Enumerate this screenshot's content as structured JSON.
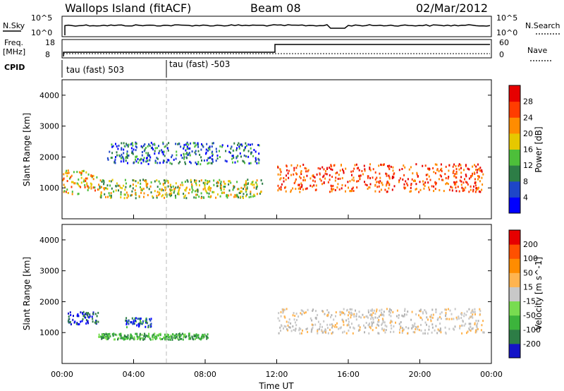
{
  "header": {
    "station": "Wallops Island (fitACF)",
    "beam": "Beam 08",
    "date": "02/Mar/2012"
  },
  "status_panel": {
    "nsky_label": "N.Sky",
    "nsky_ticks": [
      "10^5",
      "10^0"
    ],
    "nsearch_label": "N.Search",
    "nsearch_ticks": [
      "10^5",
      "10^0"
    ],
    "freq_label_1": "Freq.",
    "freq_label_2": "[MHz]",
    "freq_ticks": [
      "18",
      "8"
    ],
    "nave_label": "Nave",
    "nave_ticks": [
      "60",
      "0"
    ],
    "cpid_label": "CPID",
    "cpid_segments": [
      "tau (fast) 503",
      "tau (fast) -503"
    ]
  },
  "chart_data": [
    {
      "type": "heatmap",
      "name": "power",
      "ylabel": "Slant Range [km]",
      "yticks": [
        "4000",
        "3000",
        "2000",
        "1000"
      ],
      "ylim": [
        0,
        4500
      ],
      "xlim": [
        0,
        24
      ],
      "colorbar": {
        "label": "Power [dB]",
        "ticks": [
          "28",
          "24",
          "20",
          "16",
          "12",
          "8",
          "4"
        ],
        "colors": [
          "#0000ff",
          "#1e46c8",
          "#2d7d46",
          "#4dbf3a",
          "#e6c800",
          "#ff8c00",
          "#ff3c00",
          "#e60000"
        ]
      },
      "bands": [
        {
          "t0": 0.0,
          "t1": 2.0,
          "r0": 800,
          "r1": 1600,
          "level": "red-orange"
        },
        {
          "t0": 2.0,
          "t1": 11.2,
          "r0": 700,
          "r1": 1300,
          "level": "orange-green"
        },
        {
          "t0": 12.0,
          "t1": 23.6,
          "r0": 900,
          "r1": 1800,
          "level": "red"
        },
        {
          "t0": 2.5,
          "t1": 11.0,
          "r0": 1800,
          "r1": 2500,
          "level": "blue-green"
        }
      ]
    },
    {
      "type": "heatmap",
      "name": "velocity",
      "ylabel": "Slant Range [km]",
      "yticks": [
        "4000",
        "3000",
        "2000",
        "1000"
      ],
      "xlabel": "Time UT",
      "xticks": [
        "00:00",
        "04:00",
        "08:00",
        "12:00",
        "16:00",
        "20:00",
        "00:00"
      ],
      "ylim": [
        0,
        4500
      ],
      "xlim": [
        0,
        24
      ],
      "colorbar": {
        "label": "Velocity [m s^-1]",
        "ticks": [
          "200",
          "100",
          "50",
          "15",
          "-15",
          "-50",
          "-100",
          "-200"
        ],
        "colors": [
          "#1414c8",
          "#2d7d46",
          "#3cb43c",
          "#78dc50",
          "#c8c8c8",
          "#ffb450",
          "#ff8c00",
          "#ff5000",
          "#e60000"
        ]
      },
      "bands": [
        {
          "t0": 0.3,
          "t1": 2.0,
          "r0": 1300,
          "r1": 1700,
          "level": "blue"
        },
        {
          "t0": 2.0,
          "t1": 8.2,
          "r0": 800,
          "r1": 1000,
          "level": "green"
        },
        {
          "t0": 3.5,
          "t1": 5.0,
          "r0": 1200,
          "r1": 1500,
          "level": "blue-green"
        },
        {
          "t0": 12.0,
          "t1": 23.6,
          "r0": 1000,
          "r1": 1800,
          "level": "gray"
        }
      ]
    }
  ]
}
